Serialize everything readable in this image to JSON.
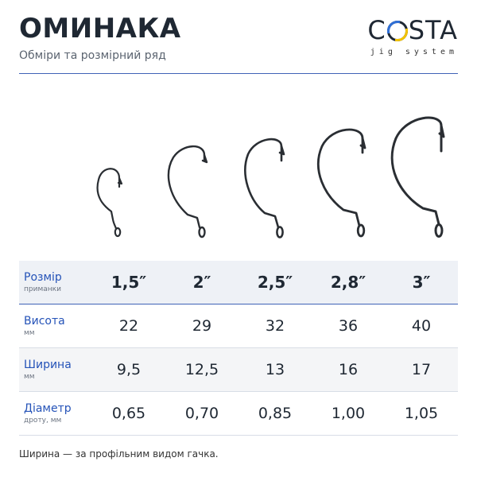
{
  "header": {
    "title": "ОМИНАКА",
    "subtitle": "Обміри та розмірний ряд"
  },
  "logo": {
    "brand_start": "C",
    "brand_end": "STA",
    "tagline": "jig system",
    "colors": {
      "blue": "#2f6fd6",
      "yellow": "#f2c200"
    }
  },
  "table": {
    "rows": [
      {
        "label": "Розмір",
        "unit": "приманки",
        "values": [
          "1,5″",
          "2″",
          "2,5″",
          "2,8″",
          "3″"
        ]
      },
      {
        "label": "Висота",
        "unit": "мм",
        "values": [
          "22",
          "29",
          "32",
          "36",
          "40"
        ]
      },
      {
        "label": "Ширина",
        "unit": "мм",
        "values": [
          "9,5",
          "12,5",
          "13",
          "16",
          "17"
        ]
      },
      {
        "label": "Діаметр",
        "unit": "дроту, мм",
        "values": [
          "0,65",
          "0,70",
          "0,85",
          "1,00",
          "1,05"
        ]
      }
    ]
  },
  "footnote": "Ширина — за профільним видом гачка.",
  "colors": {
    "accent": "#3f62b7",
    "label": "#2553b8",
    "title": "#1f2833"
  }
}
